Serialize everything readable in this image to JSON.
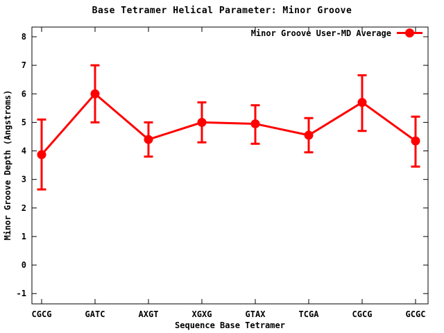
{
  "window": {
    "background": "#ffffff",
    "text_color": "#000000"
  },
  "chart_data": {
    "type": "line",
    "title": "Base Tetramer Helical Parameter: Minor Groove",
    "xlabel": "Sequence Base Tetramer",
    "ylabel": "Minor Groove Depth (Angstroms)",
    "categories": [
      "CGCG",
      "GATC",
      "AXGT",
      "XGXG",
      "GTAX",
      "TCGA",
      "CGCG",
      "GCGC"
    ],
    "series": [
      {
        "name": "Minor Groove User-MD Average",
        "values": [
          3.87,
          6.0,
          4.4,
          5.0,
          4.95,
          4.55,
          5.7,
          4.35
        ],
        "err_low": [
          2.65,
          5.0,
          3.8,
          4.3,
          4.25,
          3.95,
          4.7,
          3.45
        ],
        "err_high": [
          5.1,
          7.0,
          5.0,
          5.7,
          5.6,
          5.15,
          6.65,
          5.2
        ],
        "color": "#ff0000",
        "marker": "filled-circle",
        "error_bars": true
      }
    ],
    "yticks": [
      -1,
      0,
      1,
      2,
      3,
      4,
      5,
      6,
      7,
      8
    ],
    "ylim": [
      -1.36,
      8.34
    ],
    "xlim_category_units": [
      -0.182,
      7.234
    ],
    "grid": false,
    "legend_position": "top-right-inside",
    "axis_color": "#000000",
    "tick_style": "inward-mirrored"
  }
}
